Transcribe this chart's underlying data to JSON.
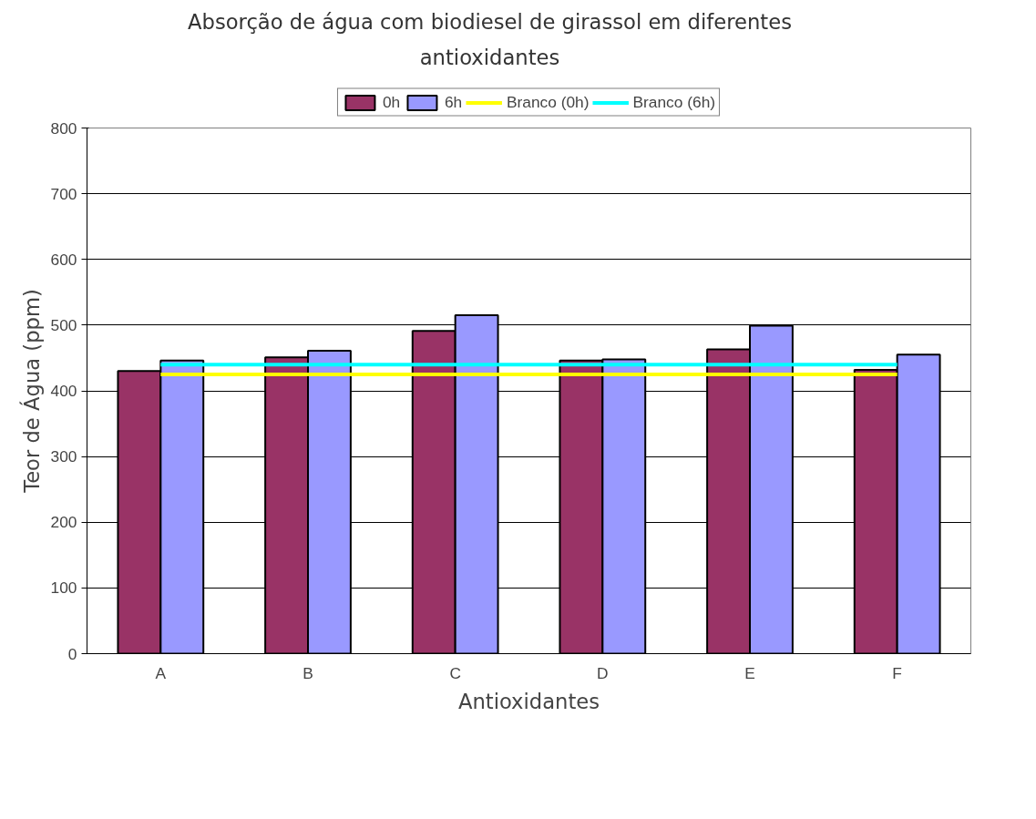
{
  "chart_data": {
    "type": "bar",
    "title": "Absorção de água com biodiesel de girassol em diferentes antioxidantes",
    "xlabel": "Antioxidantes",
    "ylabel": "Teor de Água (ppm)",
    "categories": [
      "A",
      "B",
      "C",
      "D",
      "E",
      "F"
    ],
    "series": [
      {
        "name": "0h",
        "color": "#993366",
        "values": [
          430,
          451,
          491,
          446,
          463,
          432
        ]
      },
      {
        "name": "6h",
        "color": "#9999ff",
        "values": [
          446,
          461,
          515,
          448,
          499,
          455
        ]
      },
      {
        "name": "Branco (0h)",
        "type": "line",
        "color": "#ffff00",
        "values": [
          425,
          425,
          425,
          425,
          425,
          425
        ]
      },
      {
        "name": "Branco (6h)",
        "type": "line",
        "color": "#00ffff",
        "values": [
          440,
          440,
          440,
          440,
          440,
          440
        ]
      }
    ],
    "ylim": [
      0,
      800
    ],
    "yticks": [
      0,
      100,
      200,
      300,
      400,
      500,
      600,
      700,
      800
    ],
    "grid": "y",
    "legend": "top"
  }
}
